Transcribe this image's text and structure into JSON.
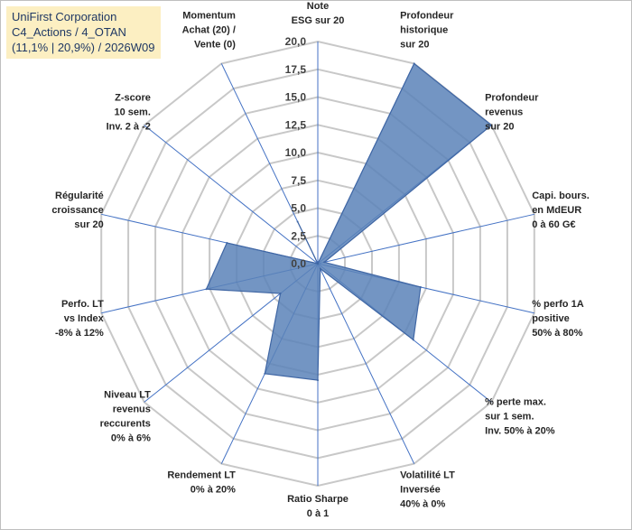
{
  "header": {
    "company": "UniFirst Corporation",
    "portfolio": "C4_Actions / 4_OTAN",
    "stats": "(11,1% | 20,9%) / 2026W09"
  },
  "chart_data": {
    "type": "radar",
    "title": "UniFirst Corporation",
    "rmin": 0,
    "rmax": 20,
    "tick_labels": [
      "0,0",
      "2,5",
      "5,0",
      "7,5",
      "10,0",
      "12,5",
      "15,0",
      "17,5",
      "20,0"
    ],
    "tick_values": [
      0,
      2.5,
      5,
      7.5,
      10,
      12.5,
      15,
      17.5,
      20
    ],
    "axes": [
      {
        "label": [
          "Note",
          "ESG sur 20"
        ]
      },
      {
        "label": [
          "Profondeur",
          "historique",
          "sur 20"
        ]
      },
      {
        "label": [
          "Profondeur",
          "revenus",
          "sur 20"
        ]
      },
      {
        "label": [
          "Capi. bours.",
          "en MdEUR",
          "0 à 60 G€"
        ]
      },
      {
        "label": [
          "% perfo 1A",
          "positive",
          "50% à 80%"
        ]
      },
      {
        "label": [
          "% perte max.",
          "sur 1 sem.",
          "Inv. 50% à 20%"
        ]
      },
      {
        "label": [
          "Volatilité LT",
          "Inversée",
          "40% à 0%"
        ]
      },
      {
        "label": [
          "Ratio Sharpe",
          "0 à 1"
        ]
      },
      {
        "label": [
          "Rendement LT",
          "0% à 20%"
        ]
      },
      {
        "label": [
          "Niveau LT",
          "revenus",
          "reccurents",
          "0% à 6%"
        ]
      },
      {
        "label": [
          "Perfo. LT",
          "vs Index",
          "-8% à 12%"
        ]
      },
      {
        "label": [
          "Régularité",
          "croissance",
          "sur 20"
        ]
      },
      {
        "label": [
          "Z-score",
          "10 sem.",
          "Inv. 2 à -2"
        ]
      },
      {
        "label": [
          "Momentum",
          "Achat (20) /",
          "Vente (0)"
        ]
      }
    ],
    "series": [
      {
        "name": "UniFirst Corporation",
        "values": [
          0,
          20,
          20,
          0.6,
          9.5,
          11.0,
          0.5,
          10.5,
          11.0,
          4.3,
          10.3,
          8.4,
          0,
          4.2
        ]
      }
    ],
    "colors": {
      "fill": "#5b82b8",
      "fill_opacity": "0.85",
      "stroke": "#3f66a4",
      "grid": "#c8c8c8",
      "spoke": "#4472c4"
    }
  }
}
